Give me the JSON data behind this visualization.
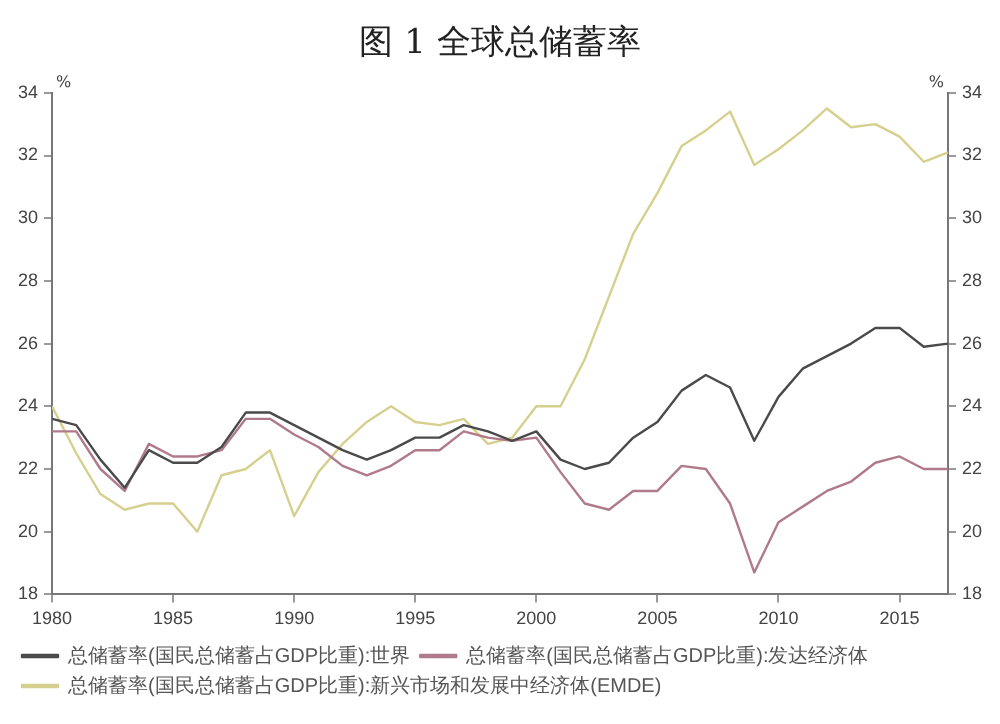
{
  "chart_data": {
    "type": "line",
    "title": "图 1 全球总储蓄率",
    "ylabel": "%",
    "y2label": "%",
    "x": [
      1980,
      1981,
      1982,
      1983,
      1984,
      1985,
      1986,
      1987,
      1988,
      1989,
      1990,
      1991,
      1992,
      1993,
      1994,
      1995,
      1996,
      1997,
      1998,
      1999,
      2000,
      2001,
      2002,
      2003,
      2004,
      2005,
      2006,
      2007,
      2008,
      2009,
      2010,
      2011,
      2012,
      2013,
      2014,
      2015,
      2016,
      2017
    ],
    "series": [
      {
        "name": "总储蓄率(国民总储蓄占GDP比重):世界",
        "color": "#4a4a4a",
        "values": [
          23.6,
          23.4,
          22.3,
          21.4,
          22.6,
          22.2,
          22.2,
          22.7,
          23.8,
          23.8,
          23.4,
          23.0,
          22.6,
          22.3,
          22.6,
          23.0,
          23.0,
          23.4,
          23.2,
          22.9,
          23.2,
          22.3,
          22.0,
          22.2,
          23.0,
          23.5,
          24.5,
          25.0,
          24.6,
          22.9,
          24.3,
          25.2,
          25.6,
          26.0,
          26.5,
          26.5,
          25.9,
          26.0
        ]
      },
      {
        "name": "总储蓄率(国民总储蓄占GDP比重):发达经济体",
        "color": "#b07a8a",
        "values": [
          23.2,
          23.2,
          22.0,
          21.3,
          22.8,
          22.4,
          22.4,
          22.6,
          23.6,
          23.6,
          23.1,
          22.7,
          22.1,
          21.8,
          22.1,
          22.6,
          22.6,
          23.2,
          23.0,
          22.9,
          23.0,
          21.9,
          20.9,
          20.7,
          21.3,
          21.3,
          22.1,
          22.0,
          20.9,
          18.7,
          20.3,
          20.8,
          21.3,
          21.6,
          22.2,
          22.4,
          22.0,
          22.0
        ]
      },
      {
        "name": "总储蓄率(国民总储蓄占GDP比重):新兴市场和发展中经济体(EMDE)",
        "color": "#d6d08e",
        "values": [
          24.0,
          22.5,
          21.2,
          20.7,
          20.9,
          20.9,
          20.0,
          21.8,
          22.0,
          22.6,
          20.5,
          21.9,
          22.8,
          23.5,
          24.0,
          23.5,
          23.4,
          23.6,
          22.8,
          23.0,
          24.0,
          24.0,
          25.5,
          27.5,
          29.5,
          30.8,
          32.3,
          32.8,
          33.4,
          31.7,
          32.2,
          32.8,
          33.5,
          32.9,
          33.0,
          32.6,
          31.8,
          32.1
        ]
      }
    ],
    "xlim": [
      1980,
      2017
    ],
    "xticks": [
      1980,
      1985,
      1990,
      1995,
      2000,
      2005,
      2010,
      2015
    ],
    "ylim": [
      18,
      34
    ],
    "yticks": [
      18,
      20,
      22,
      24,
      26,
      28,
      30,
      32,
      34
    ],
    "y2lim": [
      18,
      34
    ],
    "y2ticks": [
      18,
      20,
      22,
      24,
      26,
      28,
      30,
      32,
      34
    ],
    "grid": false,
    "legend": "bottom",
    "marker": "none",
    "line_style": "solid"
  }
}
